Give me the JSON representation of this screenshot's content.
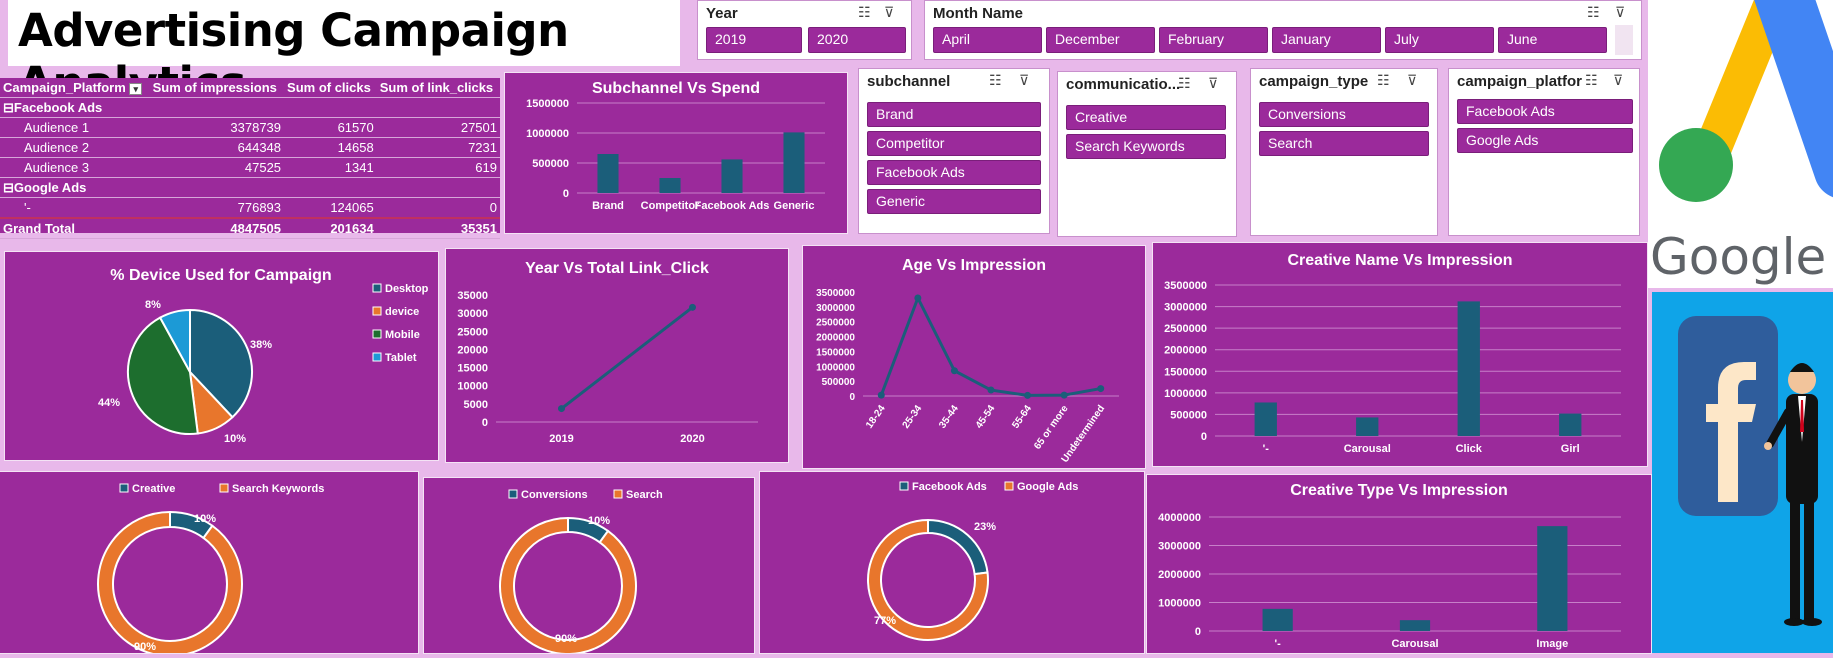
{
  "title": "Advertising Campaign Analytics",
  "slicers": {
    "year": {
      "label": "Year",
      "items": [
        "2019",
        "2020"
      ]
    },
    "month": {
      "label": "Month Name",
      "items": [
        "April",
        "December",
        "February",
        "January",
        "July",
        "June"
      ]
    },
    "subchannel": {
      "label": "subchannel",
      "items": [
        "Brand",
        "Competitor",
        "Facebook Ads",
        "Generic"
      ]
    },
    "communication": {
      "label": "communicatio...",
      "items": [
        "Creative",
        "Search Keywords"
      ]
    },
    "campaign_type": {
      "label": "campaign_type",
      "items": [
        "Conversions",
        "Search"
      ]
    },
    "campaign_platform": {
      "label": "campaign_platform",
      "items": [
        "Facebook Ads",
        "Google Ads"
      ]
    }
  },
  "pivot": {
    "headers": [
      "Campaign_Platform",
      "Sum of impressions",
      "Sum of clicks",
      "Sum of link_clicks"
    ],
    "group1": "Facebook Ads",
    "rows1": [
      [
        "Audience 1",
        "3378739",
        "61570",
        "27501"
      ],
      [
        "Audience 2",
        "644348",
        "14658",
        "7231"
      ],
      [
        "Audience 3",
        "47525",
        "1341",
        "619"
      ]
    ],
    "group2": "Google Ads",
    "rows2": [
      [
        "'-",
        "776893",
        "124065",
        "0"
      ]
    ],
    "total": [
      "Grand Total",
      "4847505",
      "201634",
      "35351"
    ]
  },
  "logos": {
    "google_text": "Google Ad"
  },
  "chart_data": [
    {
      "id": "subchannel",
      "type": "bar",
      "title": "Subchannel Vs Spend",
      "categories": [
        "Brand",
        "Competitor",
        "Facebook Ads",
        "Generic"
      ],
      "values": [
        650000,
        250000,
        560000,
        1010000
      ],
      "yticks": [
        "0",
        "500000",
        "1000000",
        "1500000"
      ],
      "ylim": [
        0,
        1500000
      ],
      "color": "#1b5e7a"
    },
    {
      "id": "device",
      "type": "pie",
      "title": "% Device Used for Campaign",
      "labels": [
        "Desktop",
        "device",
        "Mobile",
        "Tablet"
      ],
      "values": [
        38,
        10,
        44,
        8
      ],
      "pct_labels": [
        "38%",
        "10%",
        "44%",
        "8%"
      ],
      "colors": [
        "#1b5e7a",
        "#e8762c",
        "#1d6e2e",
        "#1c9ad6"
      ]
    },
    {
      "id": "year",
      "type": "line",
      "title": "Year Vs Total Link_Click",
      "categories": [
        "2019",
        "2020"
      ],
      "values": [
        3700,
        31600
      ],
      "yticks": [
        "0",
        "5000",
        "10000",
        "15000",
        "20000",
        "25000",
        "30000",
        "35000"
      ],
      "ylim": [
        0,
        35000
      ],
      "color": "#1b5e7a"
    },
    {
      "id": "age",
      "type": "line",
      "title": "Age Vs Impression",
      "categories": [
        "18-24",
        "25-34",
        "35-44",
        "45-54",
        "55-64",
        "65 or more",
        "Undetermined"
      ],
      "values": [
        30000,
        3300000,
        850000,
        200000,
        20000,
        30000,
        250000
      ],
      "yticks": [
        "0",
        "500000",
        "1000000",
        "1500000",
        "2000000",
        "2500000",
        "3000000",
        "3500000"
      ],
      "ylim": [
        0,
        3500000
      ],
      "color": "#1b5e7a"
    },
    {
      "id": "creative_name",
      "type": "bar",
      "title": "Creative Name Vs Impression",
      "categories": [
        "'-",
        "Carousal",
        "Click",
        "Girl"
      ],
      "values": [
        776893,
        430000,
        3120000,
        520000
      ],
      "yticks": [
        "0",
        "500000",
        "1000000",
        "1500000",
        "2000000",
        "2500000",
        "3000000",
        "3500000"
      ],
      "ylim": [
        0,
        3500000
      ],
      "color": "#1b5e7a"
    },
    {
      "id": "comm_donut",
      "type": "pie",
      "donut": true,
      "labels": [
        "Creative",
        "Search Keywords"
      ],
      "values": [
        10,
        90
      ],
      "pct_labels": [
        "10%",
        "90%"
      ],
      "colors": [
        "#1b5e7a",
        "#e8762c"
      ]
    },
    {
      "id": "type_donut",
      "type": "pie",
      "donut": true,
      "labels": [
        "Conversions",
        "Search"
      ],
      "values": [
        10,
        90
      ],
      "pct_labels": [
        "10%",
        "90%"
      ],
      "colors": [
        "#1b5e7a",
        "#e8762c"
      ]
    },
    {
      "id": "platform_donut",
      "type": "pie",
      "donut": true,
      "labels": [
        "Facebook Ads",
        "Google Ads"
      ],
      "values": [
        23,
        77
      ],
      "pct_labels": [
        "23%",
        "77%"
      ],
      "colors": [
        "#1b5e7a",
        "#e8762c"
      ]
    },
    {
      "id": "creative_type",
      "type": "bar",
      "title": "Creative Type Vs Impression",
      "categories": [
        "'-",
        "Carousal",
        "Image"
      ],
      "values": [
        776893,
        380000,
        3680000
      ],
      "yticks": [
        "0",
        "1000000",
        "2000000",
        "3000000",
        "4000000"
      ],
      "ylim": [
        0,
        4000000
      ],
      "color": "#1b5e7a"
    }
  ]
}
